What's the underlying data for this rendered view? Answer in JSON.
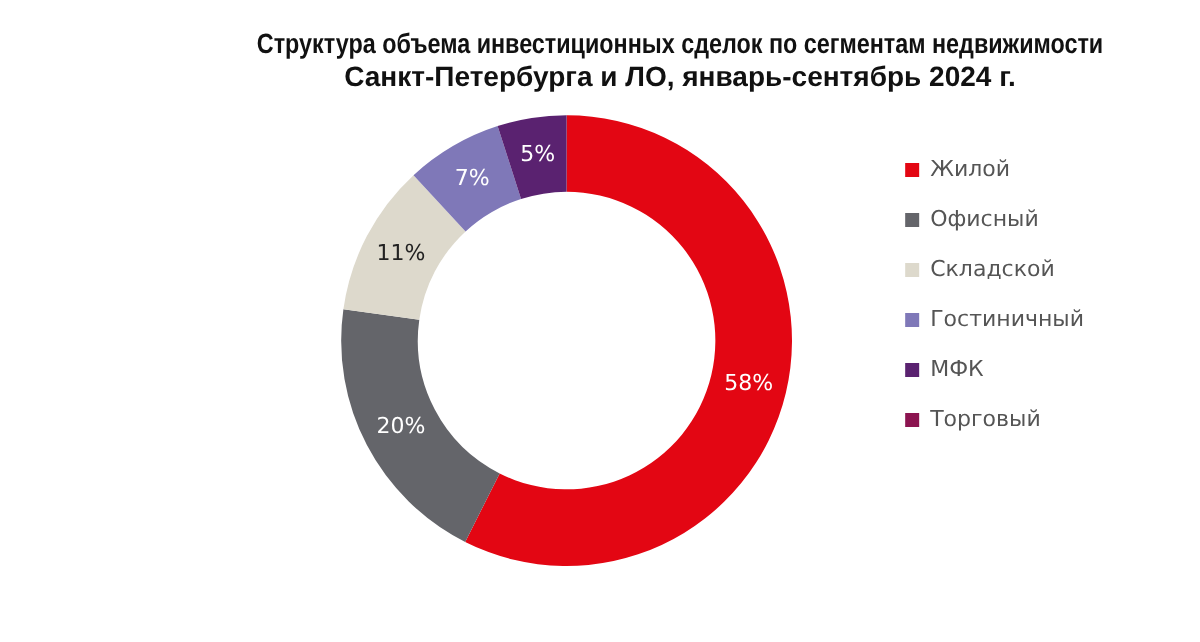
{
  "chart_data": {
    "type": "donut",
    "title": "Структура объема инвестиционных сделок по сегментам недвижимости\nСанкт-Петербурга и ЛО, январь-сентябрь 2024 г.",
    "categories": [
      "Жилой",
      "Офисный",
      "Складской",
      "Гостиничный",
      "МФК",
      "Торговый"
    ],
    "values": [
      58,
      20,
      11,
      7,
      5,
      0
    ],
    "colors": [
      "#e30613",
      "#64656a",
      "#ddd9cc",
      "#7f78b8",
      "#5a2270",
      "#8c1450"
    ],
    "value_labels": [
      "58%",
      "20%",
      "11%",
      "7%",
      "5%",
      null
    ],
    "legend": "right"
  }
}
